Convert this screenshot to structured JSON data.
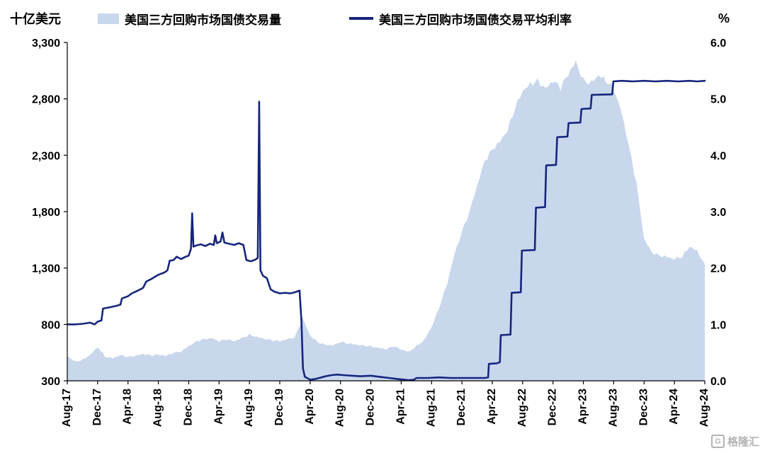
{
  "header": {
    "left_axis_title": "十亿美元",
    "right_axis_title": "%"
  },
  "watermark": {
    "icon": "G",
    "text": "格隆汇"
  },
  "chart_data": {
    "type": "combo",
    "title": "",
    "x_frequency": "monthly",
    "x_start": "Aug-17",
    "x_end": "Aug-24",
    "x_ticks": [
      "Aug-17",
      "Dec-17",
      "Apr-18",
      "Aug-18",
      "Dec-18",
      "Apr-19",
      "Aug-19",
      "Dec-19",
      "Apr-20",
      "Aug-20",
      "Dec-20",
      "Apr-21",
      "Aug-21",
      "Dec-21",
      "Apr-22",
      "Aug-22",
      "Dec-22",
      "Apr-23",
      "Aug-23",
      "Dec-23",
      "Apr-24",
      "Aug-24"
    ],
    "left_axis": {
      "title": "十亿美元",
      "min": 300,
      "max": 3300,
      "tick_labels": [
        "300",
        "800",
        "1,300",
        "1,800",
        "2,300",
        "2,800",
        "3,300"
      ]
    },
    "right_axis": {
      "title": "%",
      "min": 0,
      "max": 6,
      "tick_labels": [
        "0.0",
        "1.0",
        "2.0",
        "3.0",
        "4.0",
        "5.0",
        "6.0"
      ]
    },
    "grid": false,
    "legend_position": "top",
    "series": [
      {
        "name": "美国三方回购市场国债交易量",
        "type": "area",
        "axis": "left",
        "color": "#c9d7ed",
        "values_unit": "billion USD, monthly from Aug-2017",
        "values": [
          520,
          470,
          485,
          530,
          600,
          515,
          500,
          528,
          512,
          522,
          538,
          525,
          532,
          522,
          548,
          560,
          608,
          648,
          668,
          678,
          652,
          668,
          652,
          678,
          708,
          688,
          672,
          660,
          652,
          668,
          688,
          858,
          700,
          642,
          620,
          615,
          645,
          630,
          622,
          612,
          605,
          592,
          580,
          608,
          578,
          556,
          608,
          658,
          778,
          948,
          1150,
          1420,
          1620,
          1800,
          2030,
          2250,
          2350,
          2420,
          2520,
          2720,
          2870,
          2930,
          2960,
          2890,
          2960,
          2900,
          3020,
          3130,
          2960,
          2940,
          3010,
          2960,
          2890,
          2690,
          2380,
          2050,
          1560,
          1440,
          1410,
          1400,
          1380,
          1400,
          1490,
          1450,
          1335
        ]
      },
      {
        "name": "美国三方回购市场国债交易平均利率",
        "type": "line",
        "axis": "right",
        "color": "#16267d",
        "points_format": "[months_since_Aug-2017, percent]",
        "points": [
          [
            0,
            1.0
          ],
          [
            1,
            1.0
          ],
          [
            2,
            1.01
          ],
          [
            3,
            1.03
          ],
          [
            3.6,
            1.0
          ],
          [
            4,
            1.05
          ],
          [
            4.5,
            1.07
          ],
          [
            4.7,
            1.28
          ],
          [
            5.5,
            1.3
          ],
          [
            6.5,
            1.33
          ],
          [
            7.0,
            1.35
          ],
          [
            7.2,
            1.46
          ],
          [
            8,
            1.5
          ],
          [
            8.5,
            1.55
          ],
          [
            9,
            1.58
          ],
          [
            9.6,
            1.62
          ],
          [
            10,
            1.65
          ],
          [
            10.4,
            1.76
          ],
          [
            11,
            1.8
          ],
          [
            11.5,
            1.84
          ],
          [
            12,
            1.88
          ],
          [
            12.8,
            1.92
          ],
          [
            13.2,
            1.96
          ],
          [
            13.5,
            2.13
          ],
          [
            14,
            2.14
          ],
          [
            14.4,
            2.2
          ],
          [
            15,
            2.16
          ],
          [
            15.6,
            2.2
          ],
          [
            16,
            2.22
          ],
          [
            16.3,
            2.34
          ],
          [
            16.45,
            2.97
          ],
          [
            16.62,
            2.38
          ],
          [
            17,
            2.4
          ],
          [
            17.6,
            2.42
          ],
          [
            18.2,
            2.39
          ],
          [
            18.8,
            2.43
          ],
          [
            19.3,
            2.41
          ],
          [
            19.5,
            2.58
          ],
          [
            19.7,
            2.44
          ],
          [
            20.2,
            2.47
          ],
          [
            20.45,
            2.63
          ],
          [
            20.7,
            2.45
          ],
          [
            21.3,
            2.43
          ],
          [
            22,
            2.41
          ],
          [
            22.6,
            2.44
          ],
          [
            23.2,
            2.41
          ],
          [
            23.6,
            2.14
          ],
          [
            24.2,
            2.12
          ],
          [
            24.8,
            2.15
          ],
          [
            25.1,
            2.18
          ],
          [
            25.28,
            4.95
          ],
          [
            25.45,
            1.96
          ],
          [
            25.8,
            1.86
          ],
          [
            26.3,
            1.82
          ],
          [
            26.8,
            1.62
          ],
          [
            27.3,
            1.58
          ],
          [
            28,
            1.55
          ],
          [
            28.7,
            1.56
          ],
          [
            29.4,
            1.55
          ],
          [
            30,
            1.57
          ],
          [
            30.6,
            1.6
          ],
          [
            30.85,
            1.08
          ],
          [
            31.05,
            0.22
          ],
          [
            31.3,
            0.07
          ],
          [
            32,
            0.02
          ],
          [
            32.6,
            0.03
          ],
          [
            33.2,
            0.05
          ],
          [
            34,
            0.08
          ],
          [
            34.8,
            0.1
          ],
          [
            35.6,
            0.11
          ],
          [
            36.4,
            0.1
          ],
          [
            37.5,
            0.09
          ],
          [
            38.6,
            0.08
          ],
          [
            40,
            0.09
          ],
          [
            41.2,
            0.07
          ],
          [
            42.4,
            0.05
          ],
          [
            43.6,
            0.03
          ],
          [
            44.4,
            0.02
          ],
          [
            45,
            0.01
          ],
          [
            45.7,
            0.02
          ],
          [
            46,
            0.05
          ],
          [
            47.5,
            0.05
          ],
          [
            49,
            0.06
          ],
          [
            50.5,
            0.05
          ],
          [
            52,
            0.05
          ],
          [
            53.5,
            0.05
          ],
          [
            55,
            0.05
          ],
          [
            55.45,
            0.06
          ],
          [
            55.55,
            0.3
          ],
          [
            56.6,
            0.31
          ],
          [
            57.0,
            0.33
          ],
          [
            57.12,
            0.81
          ],
          [
            58.4,
            0.82
          ],
          [
            58.55,
            1.56
          ],
          [
            59.75,
            1.57
          ],
          [
            59.9,
            2.31
          ],
          [
            61.6,
            2.32
          ],
          [
            61.75,
            3.07
          ],
          [
            62.95,
            3.08
          ],
          [
            63.1,
            3.82
          ],
          [
            64.4,
            3.83
          ],
          [
            64.55,
            4.32
          ],
          [
            65.9,
            4.33
          ],
          [
            66.05,
            4.57
          ],
          [
            67.6,
            4.58
          ],
          [
            67.75,
            4.82
          ],
          [
            68.95,
            4.83
          ],
          [
            69.1,
            5.07
          ],
          [
            71.8,
            5.08
          ],
          [
            71.95,
            5.31
          ],
          [
            73,
            5.32
          ],
          [
            74.5,
            5.31
          ],
          [
            76,
            5.32
          ],
          [
            77.5,
            5.31
          ],
          [
            79,
            5.32
          ],
          [
            80.5,
            5.31
          ],
          [
            82,
            5.32
          ],
          [
            83,
            5.31
          ],
          [
            84,
            5.32
          ]
        ]
      }
    ]
  }
}
